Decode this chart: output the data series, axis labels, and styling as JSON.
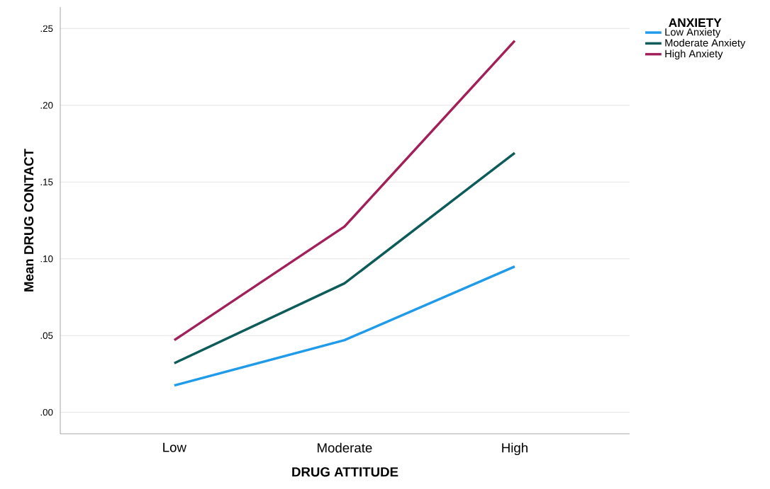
{
  "chart_data": {
    "type": "line",
    "xlabel": "DRUG ATTITUDE",
    "ylabel": "Mean DRUG CONTACT",
    "legend_title": "ANXIETY",
    "categories": [
      "Low",
      "Moderate",
      "High"
    ],
    "series": [
      {
        "name": "Low Anxiety",
        "color": "#1f9bea",
        "values": [
          0.0175,
          0.047,
          0.095
        ]
      },
      {
        "name": "Moderate Anxiety",
        "color": "#0d5c5a",
        "values": [
          0.032,
          0.084,
          0.169
        ]
      },
      {
        "name": "High Anxiety",
        "color": "#a1205a",
        "values": [
          0.047,
          0.121,
          0.242
        ]
      }
    ],
    "ylim": [
      -0.014,
      0.264
    ],
    "yticks": [
      {
        "value": 0,
        "label": ".00"
      },
      {
        "value": 0.05,
        "label": ".05"
      },
      {
        "value": 0.1,
        "label": ".10"
      },
      {
        "value": 0.15,
        "label": ".15"
      },
      {
        "value": 0.2,
        "label": ".20"
      },
      {
        "value": 0.25,
        "label": ".25"
      }
    ],
    "grid": "y",
    "legend": "top right",
    "line_style": "solid"
  }
}
